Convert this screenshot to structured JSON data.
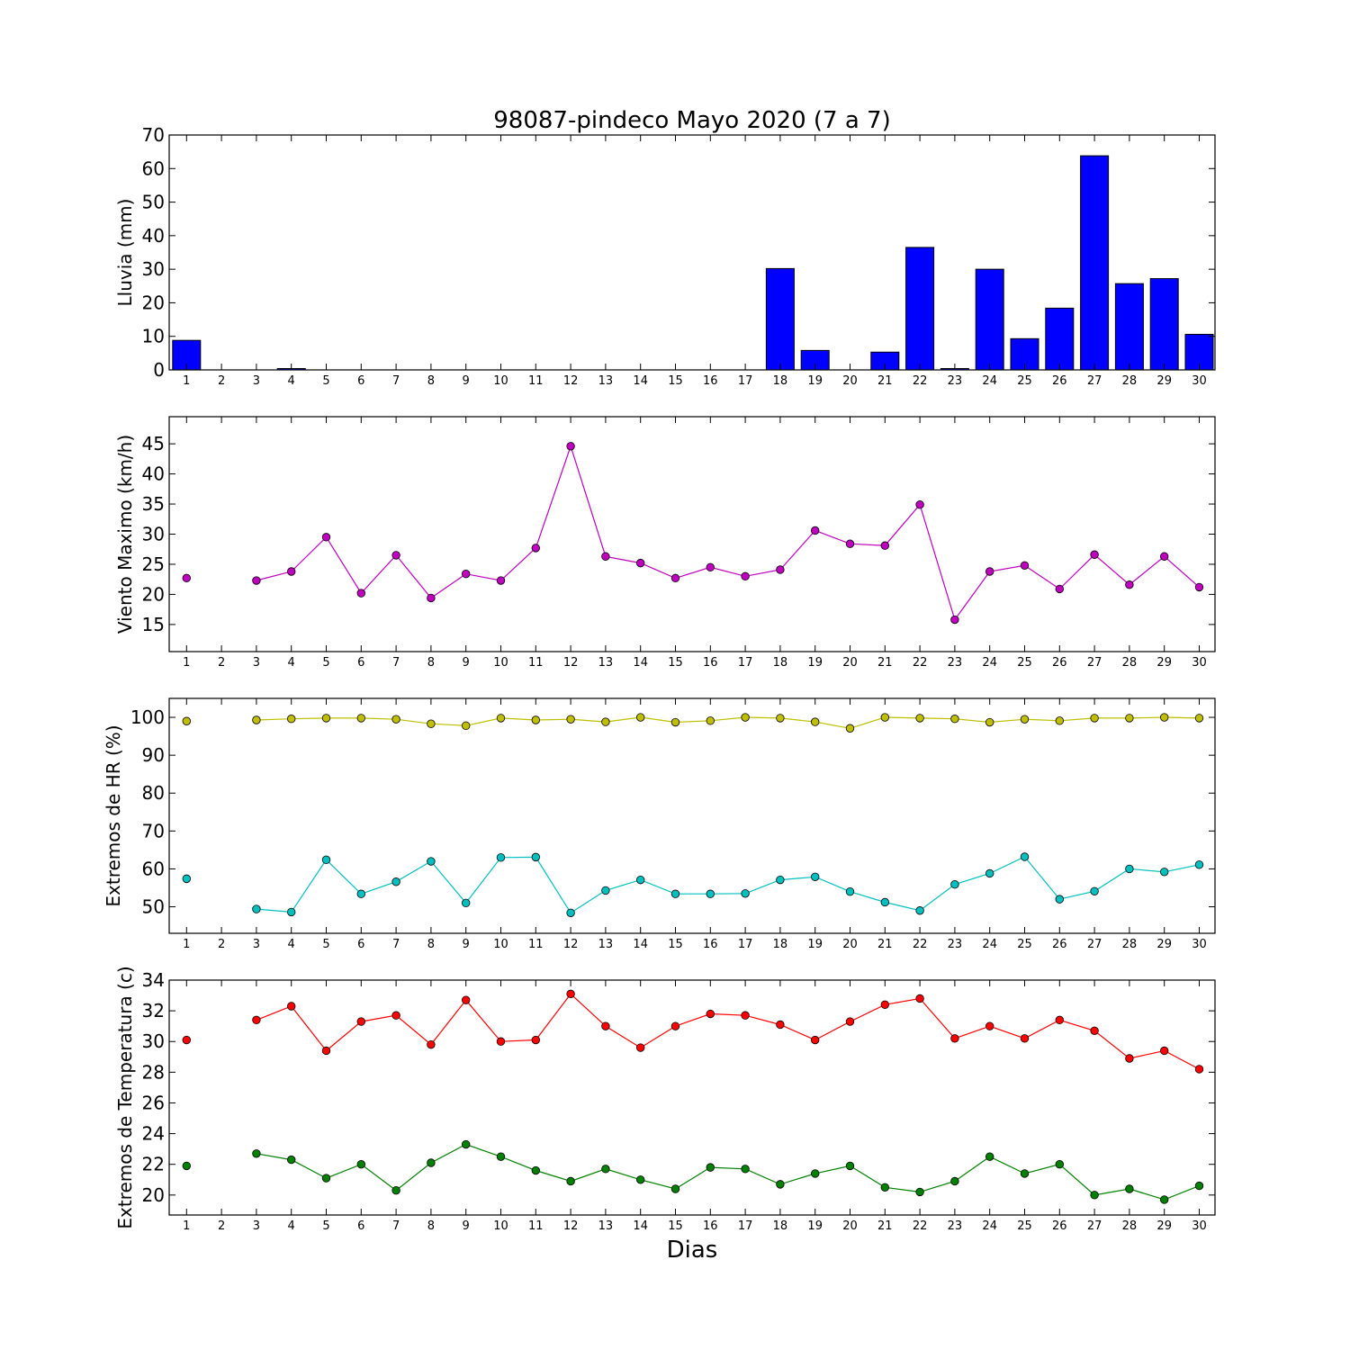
{
  "figure": {
    "title": "98087-pindeco Mayo 2020  (7 a 7)",
    "xlabel": "Dias"
  },
  "colors": {
    "rain": "#0000ff",
    "wind": "#bf00bf",
    "hr_max": "#bfbf00",
    "hr_min": "#00bfbf",
    "temp_max": "#ff0000",
    "temp_min": "#008000"
  },
  "chart_data": [
    {
      "id": "rain",
      "type": "bar",
      "ylabel": "Lluvia (mm)",
      "x": [
        1,
        2,
        3,
        4,
        5,
        6,
        7,
        8,
        9,
        10,
        11,
        12,
        13,
        14,
        15,
        16,
        17,
        18,
        19,
        20,
        21,
        22,
        23,
        24,
        25,
        26,
        27,
        28,
        29,
        30
      ],
      "ylim": [
        0,
        70
      ],
      "yticks": [
        0,
        10,
        20,
        30,
        40,
        50,
        60,
        70
      ],
      "series": [
        {
          "color": "#0000ff",
          "values": [
            8.8,
            0,
            0,
            0.4,
            0,
            0,
            0,
            0,
            0,
            0,
            0,
            0,
            0,
            0,
            0,
            0,
            0,
            30.2,
            5.8,
            0,
            5.3,
            36.5,
            0.4,
            30,
            9.3,
            18.4,
            63.8,
            25.7,
            27.2,
            10.6
          ]
        }
      ]
    },
    {
      "id": "wind",
      "type": "line",
      "ylabel": "Viento Maximo (km/h)",
      "x": [
        1,
        2,
        3,
        4,
        5,
        6,
        7,
        8,
        9,
        10,
        11,
        12,
        13,
        14,
        15,
        16,
        17,
        18,
        19,
        20,
        21,
        22,
        23,
        24,
        25,
        26,
        27,
        28,
        29,
        30
      ],
      "ylim": [
        10.5,
        49.5
      ],
      "yticks": [
        15,
        20,
        25,
        30,
        35,
        40,
        45
      ],
      "series": [
        {
          "color": "#bf00bf",
          "values": [
            22.7,
            null,
            22.3,
            23.8,
            29.5,
            20.2,
            26.5,
            19.4,
            23.4,
            22.3,
            27.7,
            44.6,
            26.3,
            25.2,
            22.7,
            24.5,
            23,
            24.1,
            30.6,
            28.4,
            28.1,
            34.9,
            15.8,
            23.8,
            24.8,
            20.9,
            26.6,
            21.6,
            26.3,
            21.2
          ]
        }
      ]
    },
    {
      "id": "hr",
      "type": "line",
      "ylabel": "Extremos de HR (%)",
      "x": [
        1,
        2,
        3,
        4,
        5,
        6,
        7,
        8,
        9,
        10,
        11,
        12,
        13,
        14,
        15,
        16,
        17,
        18,
        19,
        20,
        21,
        22,
        23,
        24,
        25,
        26,
        27,
        28,
        29,
        30
      ],
      "ylim": [
        43,
        105
      ],
      "yticks": [
        50,
        60,
        70,
        80,
        90,
        100
      ],
      "series": [
        {
          "color": "#bfbf00",
          "values": [
            99,
            null,
            99.3,
            99.6,
            99.8,
            99.8,
            99.5,
            98.3,
            97.8,
            99.8,
            99.3,
            99.5,
            98.8,
            100,
            98.7,
            99.1,
            100,
            99.8,
            98.8,
            97.1,
            100,
            99.8,
            99.6,
            98.7,
            99.5,
            99.1,
            99.8,
            99.8,
            100,
            99.8
          ]
        },
        {
          "color": "#00bfbf",
          "values": [
            57.4,
            null,
            49.4,
            48.6,
            62.4,
            53.4,
            56.6,
            62,
            51,
            63,
            63.1,
            48.4,
            54.3,
            57.1,
            53.4,
            53.4,
            53.5,
            57.1,
            57.9,
            54,
            51.2,
            49,
            55.9,
            58.8,
            63.2,
            52,
            54.1,
            60,
            59.2,
            61.1
          ]
        }
      ]
    },
    {
      "id": "temp",
      "type": "line",
      "ylabel": "Extremos de Temperatura (c)",
      "x": [
        1,
        2,
        3,
        4,
        5,
        6,
        7,
        8,
        9,
        10,
        11,
        12,
        13,
        14,
        15,
        16,
        17,
        18,
        19,
        20,
        21,
        22,
        23,
        24,
        25,
        26,
        27,
        28,
        29,
        30
      ],
      "ylim": [
        18.7,
        34
      ],
      "yticks": [
        20,
        22,
        24,
        26,
        28,
        30,
        32,
        34
      ],
      "series": [
        {
          "color": "#ff0000",
          "values": [
            30.1,
            null,
            31.4,
            32.3,
            29.4,
            31.3,
            31.7,
            29.8,
            32.7,
            30,
            30.1,
            33.1,
            31,
            29.6,
            31,
            31.8,
            31.7,
            31.1,
            30.1,
            31.3,
            32.4,
            32.8,
            30.2,
            31,
            30.2,
            31.4,
            30.7,
            28.9,
            29.4,
            28.2
          ]
        },
        {
          "color": "#008000",
          "values": [
            21.9,
            null,
            22.7,
            22.3,
            21.1,
            22,
            20.3,
            22.1,
            23.3,
            22.5,
            21.6,
            20.9,
            21.7,
            21,
            20.4,
            21.8,
            21.7,
            20.7,
            21.4,
            21.9,
            20.5,
            20.2,
            20.9,
            22.5,
            21.4,
            22,
            20,
            20.4,
            19.7,
            20.6
          ]
        }
      ]
    }
  ]
}
